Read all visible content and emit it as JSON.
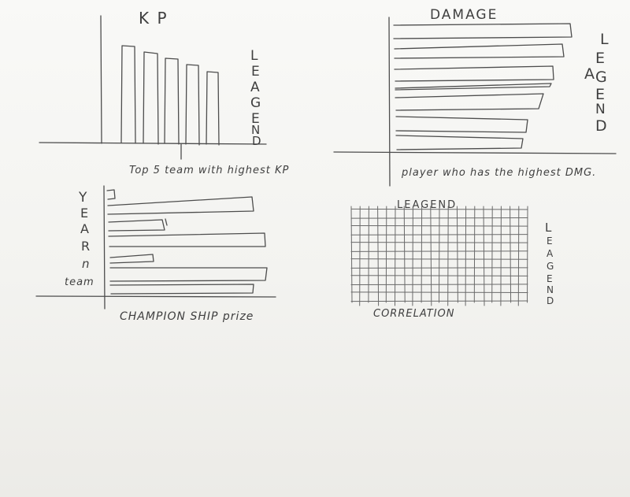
{
  "sheet": {
    "ink_color": "#4d4d4d",
    "paper_color": "#f6f5f2"
  },
  "panels": {
    "kp": {
      "title": "K P",
      "caption": "Top 5 team with highest KP",
      "legend_letters": [
        "L",
        "E",
        "A",
        "G",
        "E",
        "N",
        "D"
      ],
      "bar_count": 6
    },
    "damage": {
      "title": "DAMAGE",
      "caption": "player who has the highest DMG.",
      "legend_letters": [
        "L",
        "E",
        "A",
        "G",
        "E",
        "N",
        "D"
      ],
      "bar_count": 8
    },
    "championship": {
      "caption": "CHAMPION SHIP prize",
      "axis_letters": [
        "Y",
        "E",
        "A",
        "R",
        "n"
      ],
      "axis_word": "team",
      "bar_count": 9
    },
    "correlation": {
      "title": "LEAGEND",
      "caption": "CORRELATION",
      "legend_letters": [
        "L",
        "E",
        "A",
        "G",
        "E",
        "N",
        "D"
      ]
    }
  }
}
